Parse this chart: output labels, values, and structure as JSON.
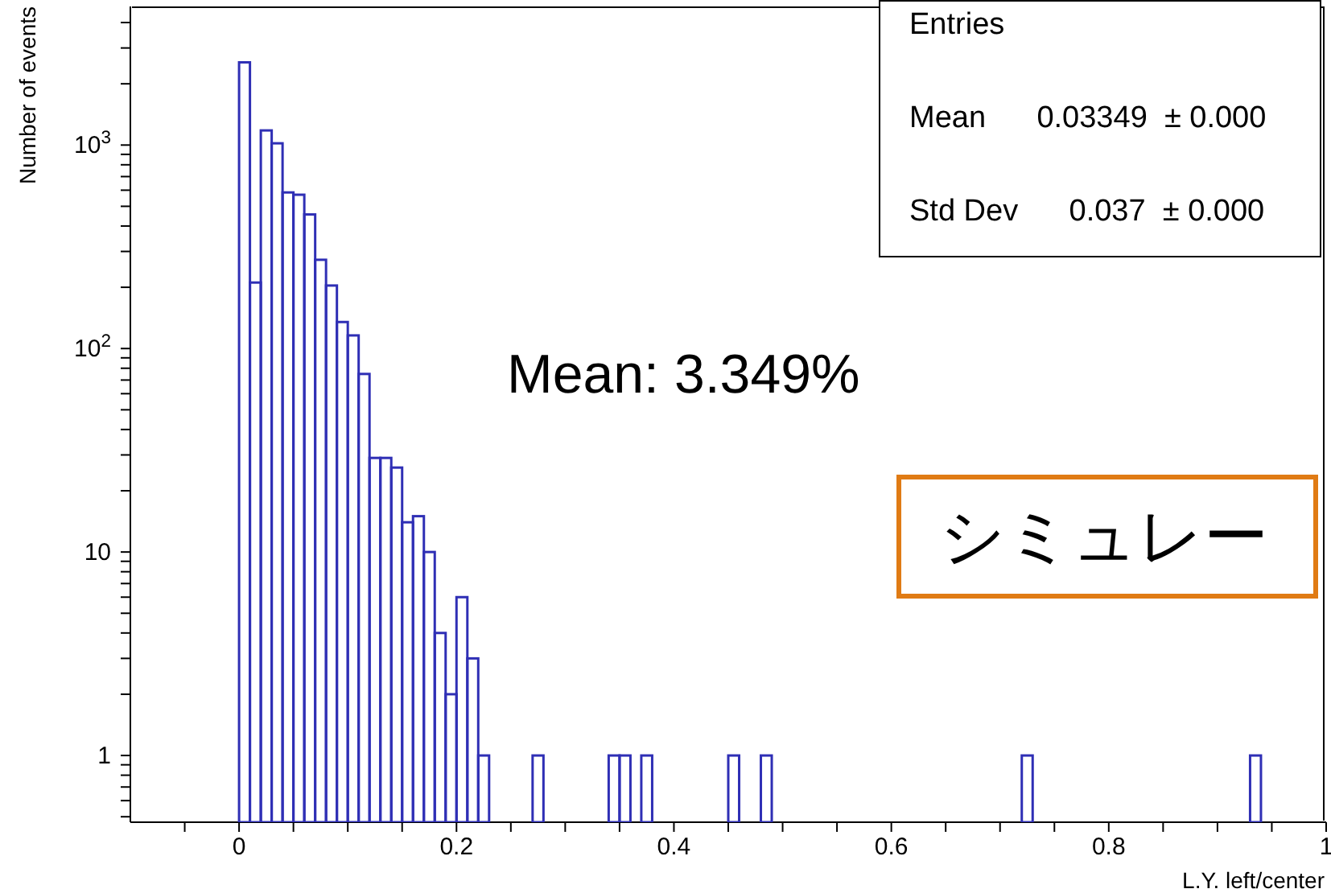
{
  "chart_data": {
    "type": "histogram",
    "xlabel": "L.Y. left/center",
    "ylabel": "Number of events",
    "bins": [
      -0.1,
      -0.09,
      -0.08,
      -0.07,
      -0.06,
      -0.05,
      -0.04,
      -0.03,
      -0.02,
      -0.01,
      0,
      0.01,
      0.02,
      0.03,
      0.04,
      0.05,
      0.06,
      0.07,
      0.08,
      0.09,
      0.1,
      0.11,
      0.12,
      0.13,
      0.14,
      0.15,
      0.16,
      0.17,
      0.18,
      0.19,
      0.2,
      0.21,
      0.22,
      0.23,
      0.24,
      0.25,
      0.26,
      0.27,
      0.28,
      0.29,
      0.3,
      0.31,
      0.32,
      0.33,
      0.34,
      0.35,
      0.36,
      0.37,
      0.38,
      0.39,
      0.4,
      0.41,
      0.42,
      0.43,
      0.44,
      0.45,
      0.46,
      0.47,
      0.48,
      0.49,
      0.5,
      0.51,
      0.52,
      0.53,
      0.54,
      0.55,
      0.56,
      0.57,
      0.58,
      0.59,
      0.6,
      0.61,
      0.62,
      0.63,
      0.64,
      0.65,
      0.66,
      0.67,
      0.68,
      0.69,
      0.7,
      0.71,
      0.72,
      0.73,
      0.74,
      0.75,
      0.76,
      0.77,
      0.78,
      0.79,
      0.8,
      0.81,
      0.82,
      0.83,
      0.84,
      0.85,
      0.86,
      0.87,
      0.88,
      0.89,
      0.9,
      0.91,
      0.92,
      0.93,
      0.94,
      0.95,
      0.96,
      0.97,
      0.98,
      0.99,
      1.0
    ],
    "values": [
      null,
      null,
      null,
      null,
      null,
      null,
      null,
      null,
      null,
      null,
      2550,
      211,
      1180,
      1020,
      585,
      570,
      456,
      273,
      204,
      135,
      116,
      75,
      29,
      29,
      26,
      14,
      15,
      10,
      4,
      2,
      6,
      3,
      1,
      null,
      null,
      null,
      null,
      1,
      null,
      null,
      null,
      null,
      null,
      null,
      1,
      1,
      null,
      1,
      null,
      null,
      null,
      null,
      null,
      null,
      null,
      1,
      null,
      null,
      1,
      null,
      null,
      null,
      null,
      null,
      null,
      null,
      null,
      null,
      null,
      null,
      null,
      null,
      null,
      null,
      null,
      null,
      null,
      null,
      null,
      null,
      null,
      null,
      1,
      null,
      null,
      null,
      null,
      null,
      null,
      null,
      null,
      null,
      null,
      null,
      null,
      null,
      null,
      null,
      null,
      null,
      null,
      null,
      null,
      1,
      null,
      null,
      null,
      null,
      null,
      null
    ],
    "color": "#2f2fb5",
    "log": true,
    "xlim": [
      -0.1,
      1.0
    ],
    "xticks": [
      {
        "value": -0.05,
        "label": null
      },
      0,
      {
        "value": 0.05,
        "label": null
      },
      {
        "value": 0.1,
        "label": null
      },
      {
        "value": 0.15,
        "label": null
      },
      0.2,
      {
        "value": 0.25,
        "label": null
      },
      {
        "value": 0.3,
        "label": null
      },
      {
        "value": 0.35,
        "label": null
      },
      0.4,
      {
        "value": 0.45,
        "label": null
      },
      {
        "value": 0.5,
        "label": null
      },
      {
        "value": 0.55,
        "label": null
      },
      0.6,
      {
        "value": 0.65,
        "label": null
      },
      {
        "value": 0.7,
        "label": null
      },
      {
        "value": 0.75,
        "label": null
      },
      0.8,
      {
        "value": 0.85,
        "label": null
      },
      {
        "value": 0.9,
        "label": null
      },
      {
        "value": 0.95,
        "label": null
      },
      1
    ],
    "ylim": [
      0.47,
      4800
    ],
    "yticks": [
      {
        "value": 0.5,
        "label": null
      },
      {
        "value": 0.6,
        "label": null
      },
      {
        "value": 0.7,
        "label": null
      },
      {
        "value": 0.8,
        "label": null
      },
      {
        "value": 0.9,
        "label": null
      },
      1,
      {
        "value": 2,
        "label": null
      },
      {
        "value": 3,
        "label": null
      },
      {
        "value": 4,
        "label": null
      },
      {
        "value": 5,
        "label": null
      },
      {
        "value": 6,
        "label": null
      },
      {
        "value": 7,
        "label": null
      },
      {
        "value": 8,
        "label": null
      },
      {
        "value": 9,
        "label": null
      },
      10,
      {
        "value": 20,
        "label": null
      },
      {
        "value": 30,
        "label": null
      },
      {
        "value": 40,
        "label": null
      },
      {
        "value": 50,
        "label": null
      },
      {
        "value": 60,
        "label": null
      },
      {
        "value": 70,
        "label": null
      },
      {
        "value": 80,
        "label": null
      },
      {
        "value": 90,
        "label": null
      },
      {
        "value": 100,
        "label": "10$^{2}$"
      },
      {
        "value": 200,
        "label": null
      },
      {
        "value": 300,
        "label": null
      },
      {
        "value": 400,
        "label": null
      },
      {
        "value": 500,
        "label": null
      },
      {
        "value": 600,
        "label": null
      },
      {
        "value": 700,
        "label": null
      },
      {
        "value": 800,
        "label": null
      },
      {
        "value": 900,
        "label": null
      },
      {
        "value": 1000,
        "label": "10$^{3}$"
      },
      {
        "value": 2000,
        "label": null
      },
      {
        "value": 3000,
        "label": null
      },
      {
        "value": 4000,
        "label": null
      }
    ],
    "annotations": [
      "Entries",
      "Mean      0.03349  ± 0.000",
      "Std Dev      0.037  ± 0.000",
      "Mean: 3.349%",
      "シミュレー"
    ]
  }
}
